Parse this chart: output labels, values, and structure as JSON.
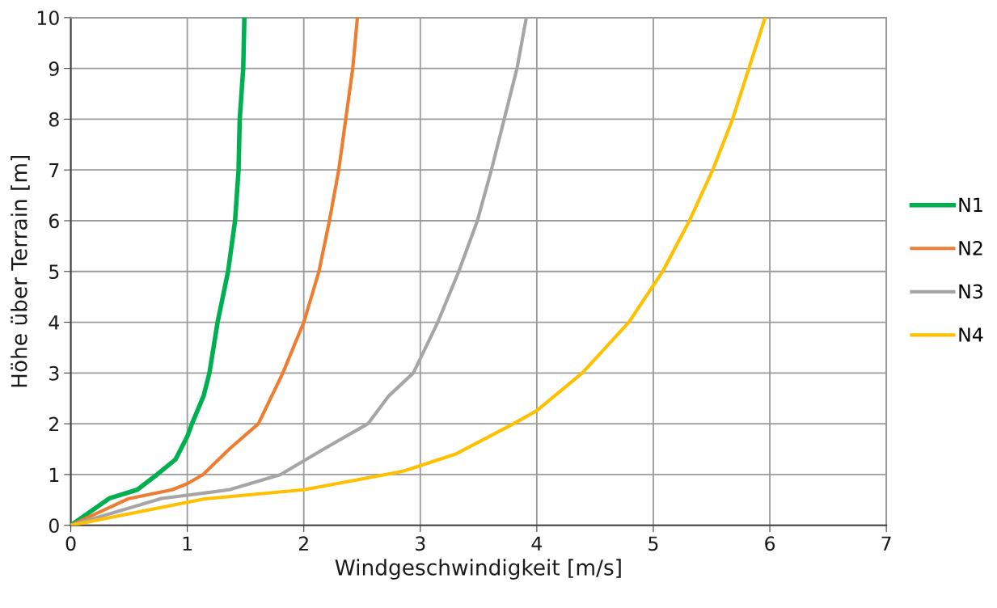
{
  "chart_data": {
    "type": "line",
    "xlabel": "Windgeschwindigkeit [m/s]",
    "ylabel": "Höhe über Terrain [m]",
    "xlim": [
      0,
      7
    ],
    "xticks": [
      0,
      1,
      2,
      3,
      4,
      5,
      6,
      7
    ],
    "ylim": [
      0,
      10
    ],
    "yticks": [
      0,
      1,
      2,
      3,
      4,
      5,
      6,
      7,
      8,
      9,
      10
    ],
    "grid": true,
    "legend": "right",
    "marker": "none",
    "line_style": "solid",
    "series": [
      {
        "name": "N1",
        "color": "#00b050",
        "x": [
          0,
          0.33,
          0.57,
          0.74,
          0.9,
          1.0,
          1.04,
          1.14,
          1.19,
          1.26,
          1.35,
          1.41,
          1.44,
          1.45,
          1.48,
          1.49
        ],
        "values": [
          0,
          0.53,
          0.7,
          1.0,
          1.3,
          1.75,
          2.0,
          2.55,
          3,
          4,
          5,
          6,
          7,
          8,
          9,
          10
        ]
      },
      {
        "name": "N2",
        "color": "#ed7d31",
        "x": [
          0,
          0.49,
          0.87,
          1.0,
          1.135,
          1.36,
          1.61,
          1.82,
          2.0,
          2.13,
          2.22,
          2.3,
          2.36,
          2.42,
          2.46
        ],
        "values": [
          0,
          0.52,
          0.7,
          0.82,
          1.0,
          1.5,
          2.0,
          3,
          4,
          5,
          6,
          7,
          8,
          9,
          10
        ]
      },
      {
        "name": "N3",
        "color": "#a5a5a5",
        "x": [
          0,
          0.78,
          1.36,
          1.8,
          2.17,
          2.55,
          2.73,
          2.94,
          3.15,
          3.33,
          3.49,
          3.61,
          3.72,
          3.83,
          3.91
        ],
        "values": [
          0,
          0.53,
          0.7,
          1.0,
          1.5,
          2.0,
          2.55,
          3,
          4,
          5,
          6,
          7,
          8,
          9,
          10
        ]
      },
      {
        "name": "N4",
        "color": "#ffc000",
        "x": [
          0,
          1.15,
          2.0,
          2.7,
          2.86,
          3.3,
          3.8,
          4.0,
          4.39,
          4.79,
          5.08,
          5.31,
          5.51,
          5.68,
          5.82,
          5.96
        ],
        "values": [
          0,
          0.52,
          0.7,
          1.0,
          1.07,
          1.4,
          2.0,
          2.26,
          3,
          4,
          5,
          6,
          7,
          8,
          9,
          10
        ]
      }
    ]
  }
}
